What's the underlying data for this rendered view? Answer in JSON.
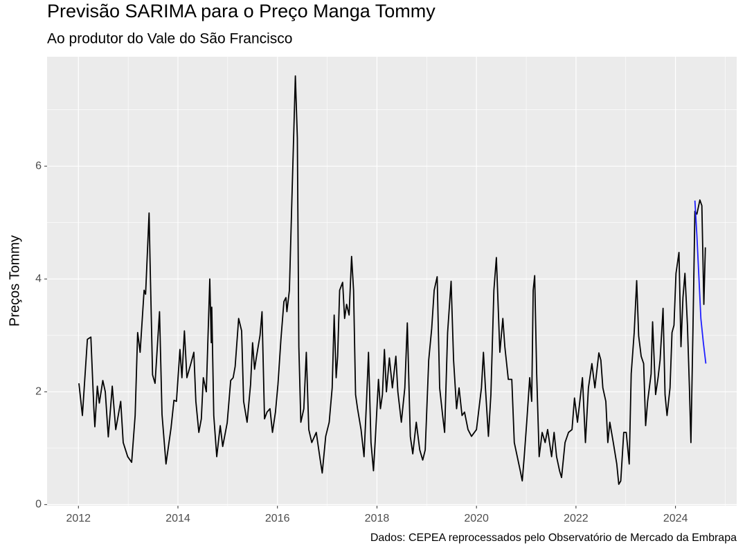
{
  "chart_data": {
    "type": "line",
    "title": "Previsão SARIMA para o Preço Manga Tommy",
    "subtitle": "Ao produtor do Vale do São Francisco",
    "y_label": "Preços Tommy",
    "caption": "Dados: CEPEA reprocessados pelo Observatório de Mercado da Embrapa",
    "xlim": [
      2011.37,
      2025.23
    ],
    "ylim": [
      -0.02,
      7.94
    ],
    "xticks": [
      2012,
      2014,
      2016,
      2018,
      2020,
      2022,
      2024
    ],
    "yticks": [
      0,
      2,
      4,
      6
    ],
    "x_minor_ticks": [
      2013,
      2015,
      2017,
      2019,
      2021,
      2023,
      2025
    ],
    "y_minor_ticks": [
      1,
      3,
      5,
      7
    ],
    "grid": true,
    "series": [
      {
        "color": "#000000",
        "x": [
          2012.01,
          2012.08,
          2012.18,
          2012.25,
          2012.31,
          2012.33,
          2012.38,
          2012.42,
          2012.49,
          2012.54,
          2012.6,
          2012.68,
          2012.75,
          2012.85,
          2012.9,
          2012.99,
          2013.07,
          2013.14,
          2013.19,
          2013.24,
          2013.32,
          2013.35,
          2013.42,
          2013.44,
          2013.49,
          2013.54,
          2013.63,
          2013.68,
          2013.76,
          2013.82,
          2013.86,
          2013.92,
          2013.97,
          2014.04,
          2014.08,
          2014.13,
          2014.18,
          2014.26,
          2014.32,
          2014.36,
          2014.42,
          2014.47,
          2014.51,
          2014.57,
          2014.64,
          2014.67,
          2014.68,
          2014.72,
          2014.78,
          2014.85,
          2014.9,
          2014.99,
          2015.06,
          2015.11,
          2015.15,
          2015.22,
          2015.28,
          2015.32,
          2015.39,
          2015.46,
          2015.5,
          2015.54,
          2015.58,
          2015.65,
          2015.69,
          2015.74,
          2015.79,
          2015.85,
          2015.9,
          2015.96,
          2016.01,
          2016.07,
          2016.13,
          2016.17,
          2016.19,
          2016.24,
          2016.29,
          2016.36,
          2016.4,
          2016.43,
          2016.47,
          2016.53,
          2016.58,
          2016.63,
          2016.69,
          2016.78,
          2016.86,
          2016.9,
          2016.97,
          2017.04,
          2017.1,
          2017.14,
          2017.18,
          2017.21,
          2017.25,
          2017.31,
          2017.35,
          2017.39,
          2017.44,
          2017.49,
          2017.53,
          2017.57,
          2017.61,
          2017.68,
          2017.74,
          2017.79,
          2017.83,
          2017.88,
          2017.93,
          2017.97,
          2018.03,
          2018.07,
          2018.11,
          2018.15,
          2018.19,
          2018.25,
          2018.31,
          2018.38,
          2018.42,
          2018.49,
          2018.56,
          2018.61,
          2018.67,
          2018.72,
          2018.79,
          2018.86,
          2018.92,
          2018.97,
          2019.04,
          2019.1,
          2019.15,
          2019.21,
          2019.26,
          2019.32,
          2019.36,
          2019.42,
          2019.49,
          2019.54,
          2019.6,
          2019.65,
          2019.71,
          2019.76,
          2019.83,
          2019.9,
          2020.0,
          2020.1,
          2020.14,
          2020.18,
          2020.24,
          2020.29,
          2020.35,
          2020.4,
          2020.44,
          2020.47,
          2020.53,
          2020.57,
          2020.64,
          2020.71,
          2020.76,
          2020.82,
          2020.88,
          2020.92,
          2020.96,
          2021.01,
          2021.07,
          2021.11,
          2021.14,
          2021.17,
          2021.21,
          2021.26,
          2021.32,
          2021.38,
          2021.43,
          2021.51,
          2021.56,
          2021.61,
          2021.67,
          2021.71,
          2021.78,
          2021.85,
          2021.92,
          2021.97,
          2022.03,
          2022.08,
          2022.13,
          2022.19,
          2022.25,
          2022.32,
          2022.38,
          2022.46,
          2022.5,
          2022.54,
          2022.6,
          2022.64,
          2022.68,
          2022.75,
          2022.82,
          2022.86,
          2022.9,
          2022.96,
          2023.01,
          2023.07,
          2023.11,
          2023.17,
          2023.22,
          2023.26,
          2023.31,
          2023.36,
          2023.4,
          2023.44,
          2023.51,
          2023.54,
          2023.6,
          2023.65,
          2023.69,
          2023.75,
          2023.79,
          2023.83,
          2023.89,
          2023.93,
          2023.97,
          2024.01,
          2024.07,
          2024.11,
          2024.15,
          2024.19,
          2024.24,
          2024.28,
          2024.31,
          2024.35,
          2024.39,
          2024.43,
          2024.49,
          2024.53,
          2024.57,
          2024.6
        ],
        "values": [
          2.15,
          1.58,
          2.93,
          2.97,
          1.7,
          1.38,
          2.1,
          1.8,
          2.2,
          2.0,
          1.2,
          2.1,
          1.33,
          1.83,
          1.1,
          0.85,
          0.75,
          1.58,
          3.05,
          2.7,
          3.8,
          3.73,
          5.17,
          4.3,
          2.3,
          2.15,
          3.42,
          1.6,
          0.72,
          1.1,
          1.35,
          1.85,
          1.83,
          2.75,
          2.25,
          3.08,
          2.25,
          2.5,
          2.7,
          1.83,
          1.28,
          1.52,
          2.25,
          2.0,
          4.0,
          2.87,
          3.5,
          1.58,
          0.85,
          1.4,
          1.03,
          1.45,
          2.2,
          2.25,
          2.45,
          3.3,
          3.08,
          1.83,
          1.46,
          2.13,
          2.87,
          2.4,
          2.63,
          3.0,
          3.42,
          1.52,
          1.64,
          1.7,
          1.28,
          1.64,
          2.13,
          2.93,
          3.6,
          3.67,
          3.42,
          3.8,
          5.4,
          7.6,
          6.5,
          2.8,
          1.46,
          1.7,
          2.7,
          1.33,
          1.1,
          1.28,
          0.79,
          0.56,
          1.21,
          1.46,
          2.07,
          3.36,
          2.25,
          2.63,
          3.8,
          3.94,
          3.3,
          3.55,
          3.36,
          4.4,
          3.8,
          1.95,
          1.7,
          1.33,
          0.85,
          1.83,
          2.7,
          1.1,
          0.6,
          1.21,
          2.22,
          1.7,
          1.95,
          2.75,
          2.0,
          2.6,
          2.07,
          2.63,
          2.0,
          1.46,
          2.07,
          3.22,
          1.21,
          0.9,
          1.46,
          0.97,
          0.79,
          0.97,
          2.56,
          3.12,
          3.8,
          4.04,
          2.07,
          1.58,
          1.28,
          3.05,
          3.96,
          2.56,
          1.7,
          2.07,
          1.58,
          1.64,
          1.33,
          1.21,
          1.33,
          2.07,
          2.7,
          2.07,
          1.21,
          1.95,
          3.8,
          4.38,
          3.42,
          2.7,
          3.3,
          2.8,
          2.22,
          2.22,
          1.1,
          0.85,
          0.6,
          0.42,
          0.85,
          1.46,
          2.25,
          1.83,
          3.8,
          4.06,
          2.32,
          0.85,
          1.28,
          1.1,
          1.33,
          0.85,
          1.28,
          0.85,
          0.6,
          0.48,
          1.1,
          1.28,
          1.33,
          1.89,
          1.46,
          1.85,
          2.25,
          1.1,
          2.07,
          2.5,
          2.07,
          2.69,
          2.56,
          2.07,
          1.83,
          1.1,
          1.46,
          1.1,
          0.72,
          0.36,
          0.42,
          1.28,
          1.28,
          0.72,
          2.32,
          3.05,
          3.97,
          2.99,
          2.63,
          2.5,
          1.4,
          1.83,
          2.32,
          3.24,
          1.95,
          2.25,
          2.56,
          3.48,
          1.95,
          1.58,
          2.07,
          3.05,
          3.18,
          4.1,
          4.47,
          2.8,
          3.67,
          4.1,
          3.18,
          2.07,
          1.1,
          3.05,
          5.2,
          5.15,
          5.4,
          5.3,
          3.55,
          4.56
        ]
      },
      {
        "color": "#1f1fff",
        "x": [
          2024.39,
          2024.43,
          2024.47,
          2024.51,
          2024.56,
          2024.61
        ],
        "values": [
          5.39,
          4.77,
          4.04,
          3.3,
          2.87,
          2.5
        ]
      }
    ]
  }
}
